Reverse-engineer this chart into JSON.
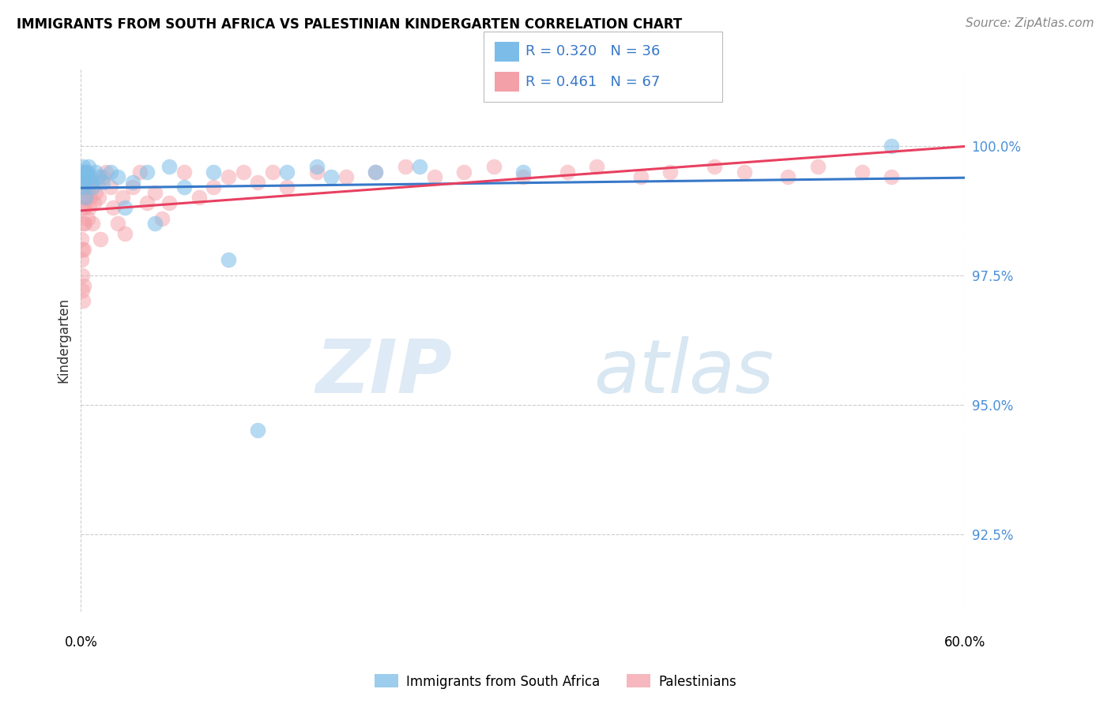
{
  "title": "IMMIGRANTS FROM SOUTH AFRICA VS PALESTINIAN KINDERGARTEN CORRELATION CHART",
  "source": "Source: ZipAtlas.com",
  "ylabel": "Kindergarten",
  "yticks": [
    92.5,
    95.0,
    97.5,
    100.0
  ],
  "ytick_labels": [
    "92.5%",
    "95.0%",
    "97.5%",
    "100.0%"
  ],
  "xlim": [
    0.0,
    60.0
  ],
  "ylim": [
    91.0,
    101.5
  ],
  "legend_blue_r": "0.320",
  "legend_blue_n": "36",
  "legend_pink_r": "0.461",
  "legend_pink_n": "67",
  "legend1_label": "Immigrants from South Africa",
  "legend2_label": "Palestinians",
  "blue_color": "#7bbde8",
  "pink_color": "#f4a0a8",
  "blue_line_color": "#3878c8",
  "pink_line_color": "#e84060",
  "watermark_zip": "ZIP",
  "watermark_atlas": "atlas",
  "blue_x": [
    0.05,
    0.08,
    0.1,
    0.12,
    0.15,
    0.18,
    0.2,
    0.25,
    0.3,
    0.35,
    0.4,
    0.5,
    0.6,
    0.7,
    0.8,
    1.0,
    1.2,
    1.5,
    2.0,
    2.5,
    3.0,
    3.5,
    4.5,
    5.0,
    6.0,
    7.0,
    9.0,
    10.0,
    12.0,
    14.0,
    16.0,
    17.0,
    20.0,
    23.0,
    30.0,
    55.0
  ],
  "blue_y": [
    99.3,
    99.4,
    99.2,
    99.5,
    99.6,
    99.3,
    99.4,
    99.5,
    99.0,
    99.4,
    99.5,
    99.6,
    99.4,
    99.3,
    99.2,
    99.5,
    99.4,
    99.3,
    99.5,
    99.4,
    98.8,
    99.3,
    99.5,
    98.5,
    99.6,
    99.2,
    99.5,
    97.8,
    94.5,
    99.5,
    99.6,
    99.4,
    99.5,
    99.6,
    99.5,
    100.0
  ],
  "pink_x": [
    0.03,
    0.05,
    0.07,
    0.08,
    0.1,
    0.12,
    0.13,
    0.15,
    0.17,
    0.18,
    0.2,
    0.22,
    0.25,
    0.27,
    0.3,
    0.35,
    0.4,
    0.45,
    0.5,
    0.55,
    0.6,
    0.7,
    0.8,
    0.9,
    1.0,
    1.1,
    1.2,
    1.3,
    1.5,
    1.7,
    2.0,
    2.2,
    2.5,
    2.8,
    3.0,
    3.5,
    4.0,
    4.5,
    5.0,
    5.5,
    6.0,
    7.0,
    8.0,
    9.0,
    10.0,
    11.0,
    12.0,
    13.0,
    14.0,
    16.0,
    18.0,
    20.0,
    22.0,
    24.0,
    26.0,
    28.0,
    30.0,
    33.0,
    35.0,
    38.0,
    40.0,
    43.0,
    45.0,
    48.0,
    50.0,
    53.0,
    55.0
  ],
  "pink_y": [
    98.2,
    97.8,
    98.0,
    97.5,
    97.2,
    97.0,
    98.5,
    98.8,
    97.3,
    98.0,
    99.0,
    98.5,
    98.8,
    99.2,
    99.3,
    99.0,
    99.5,
    98.6,
    99.2,
    98.8,
    99.0,
    99.3,
    98.5,
    98.9,
    99.1,
    99.3,
    99.0,
    98.2,
    99.4,
    99.5,
    99.2,
    98.8,
    98.5,
    99.0,
    98.3,
    99.2,
    99.5,
    98.9,
    99.1,
    98.6,
    98.9,
    99.5,
    99.0,
    99.2,
    99.4,
    99.5,
    99.3,
    99.5,
    99.2,
    99.5,
    99.4,
    99.5,
    99.6,
    99.4,
    99.5,
    99.6,
    99.4,
    99.5,
    99.6,
    99.4,
    99.5,
    99.6,
    99.5,
    99.4,
    99.6,
    99.5,
    99.4
  ]
}
